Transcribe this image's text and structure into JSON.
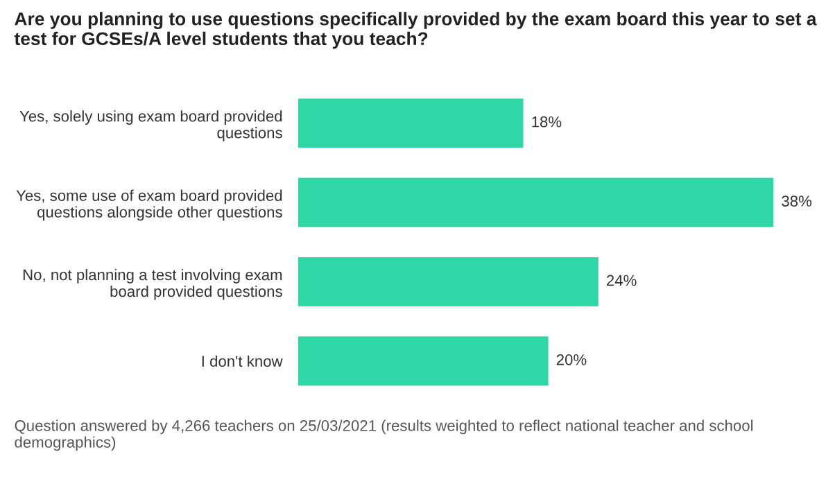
{
  "chart_data": {
    "type": "bar",
    "orientation": "horizontal",
    "title": "Are you planning to use questions specifically provided by the exam board this year to set a test for GCSEs/A level students that you teach?",
    "categories": [
      "Yes, solely using exam board provided\nquestions",
      "Yes, some use of exam board provided\nquestions alongside other questions",
      "No, not planning a test involving exam\nboard provided questions",
      "I don't know"
    ],
    "values": [
      18,
      38,
      24,
      20
    ],
    "color": "#2fd6a6",
    "data_labels": true,
    "value_labels": [
      "18%",
      "38%",
      "24%",
      "20%"
    ],
    "annotations": [
      "Question answered by 4,266 teachers on 25/03/2021 (results weighted to reflect national teacher and school demographics)"
    ]
  }
}
